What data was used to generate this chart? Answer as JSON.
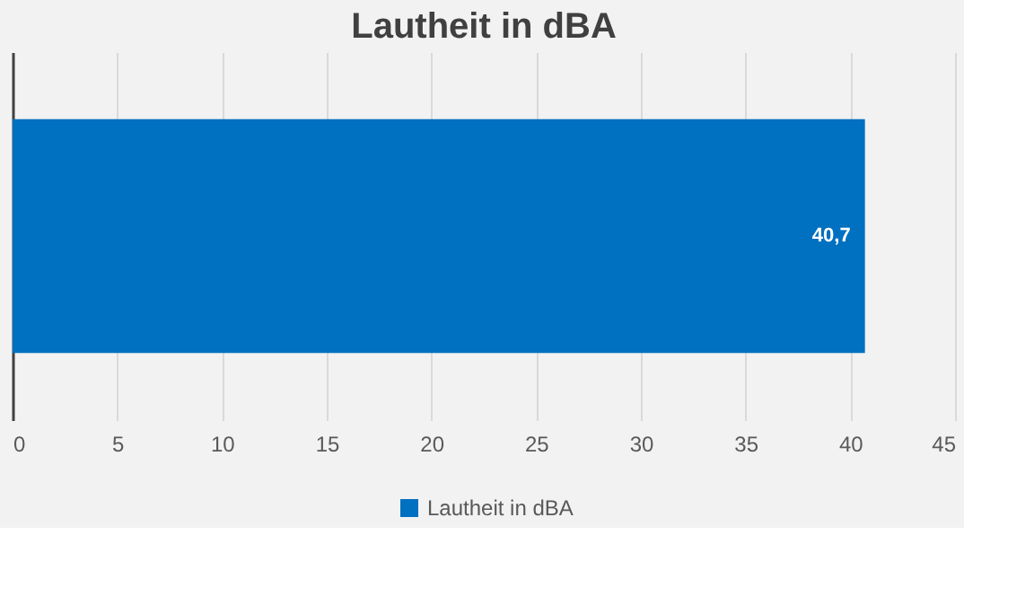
{
  "chart_data": {
    "type": "bar",
    "orientation": "horizontal",
    "title": "Lautheit in dBA",
    "categories": [
      null
    ],
    "series": [
      {
        "name": "Lautheit in dBA",
        "color": "#0070c0",
        "values": [
          40.7
        ],
        "value_labels": [
          "40,7"
        ]
      }
    ],
    "xlim": [
      0,
      45
    ],
    "xticks": [
      0,
      5,
      10,
      15,
      20,
      25,
      30,
      35,
      40,
      45
    ],
    "grid": "x",
    "legend": "bottom"
  }
}
